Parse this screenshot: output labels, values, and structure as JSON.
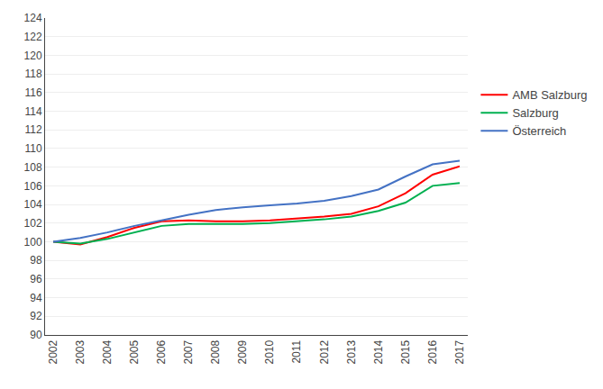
{
  "chart_data": {
    "type": "line",
    "x": [
      2002,
      2003,
      2004,
      2005,
      2006,
      2007,
      2008,
      2009,
      2010,
      2011,
      2012,
      2013,
      2014,
      2015,
      2016,
      2017
    ],
    "series": [
      {
        "name": "AMB Salzburg",
        "color": "#ff0000",
        "values": [
          100.0,
          99.7,
          100.5,
          101.5,
          102.2,
          102.3,
          102.2,
          102.2,
          102.3,
          102.5,
          102.7,
          103.0,
          103.8,
          105.2,
          107.2,
          108.1
        ]
      },
      {
        "name": "Salzburg",
        "color": "#00b050",
        "values": [
          100.0,
          99.8,
          100.3,
          101.0,
          101.7,
          101.9,
          101.9,
          101.9,
          102.0,
          102.2,
          102.4,
          102.7,
          103.3,
          104.2,
          106.0,
          106.3
        ]
      },
      {
        "name": "Österreich",
        "color": "#4472c4",
        "values": [
          100.0,
          100.4,
          101.0,
          101.7,
          102.3,
          102.9,
          103.4,
          103.7,
          103.9,
          104.1,
          104.4,
          104.9,
          105.6,
          107.0,
          108.3,
          108.7
        ]
      }
    ],
    "xlim": [
      2001.7,
      2017.3
    ],
    "xticks": [
      2002,
      2003,
      2004,
      2005,
      2006,
      2007,
      2008,
      2009,
      2010,
      2011,
      2012,
      2013,
      2014,
      2015,
      2016,
      2017
    ],
    "ylim": [
      90,
      124
    ],
    "yticks": [
      90,
      92,
      94,
      96,
      98,
      100,
      102,
      104,
      106,
      108,
      110,
      112,
      114,
      116,
      118,
      120,
      122,
      124
    ],
    "grid": "y",
    "legend": "right"
  }
}
